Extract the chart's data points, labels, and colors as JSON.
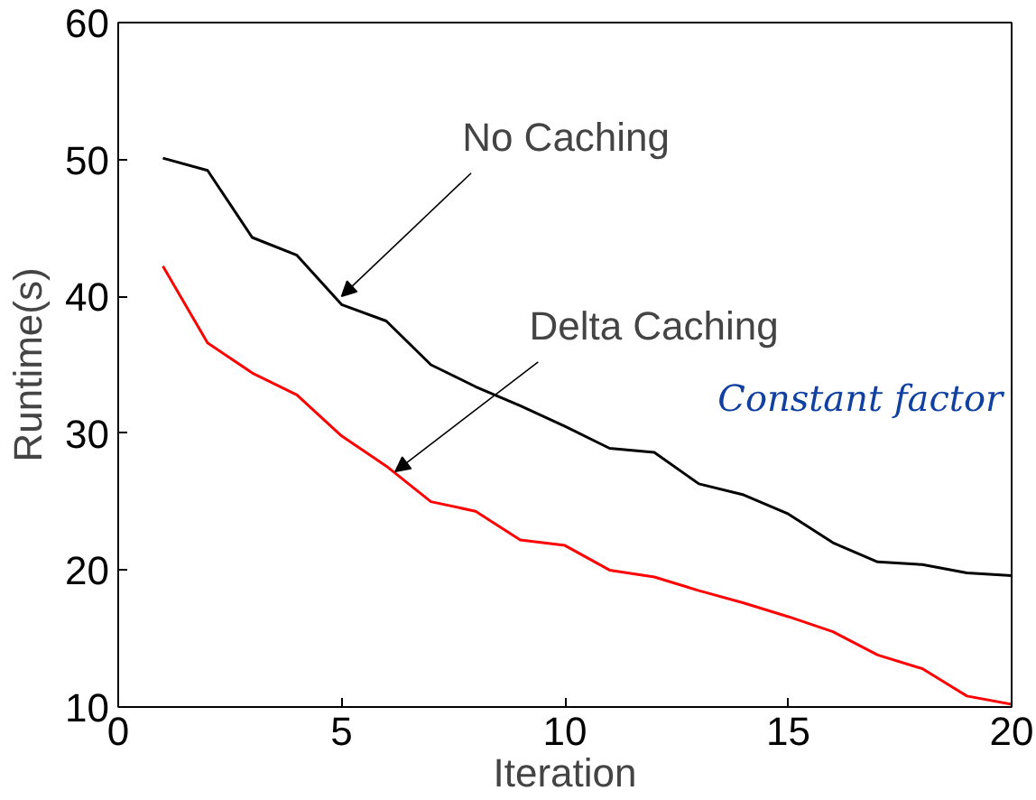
{
  "chart_data": {
    "type": "line",
    "xlabel": "Iteration",
    "ylabel": "Runtime(s)",
    "x": [
      1,
      2,
      3,
      4,
      5,
      6,
      7,
      8,
      9,
      10,
      11,
      12,
      13,
      14,
      15,
      16,
      17,
      18,
      19,
      20
    ],
    "series": [
      {
        "color": "#000000",
        "values": [
          50.1,
          49.2,
          44.3,
          43,
          39.4,
          38.2,
          35,
          33.4,
          32,
          30.5,
          28.9,
          28.6,
          26.3,
          25.5,
          24.1,
          22,
          20.6,
          20.4,
          19.8,
          19.6
        ]
      },
      {
        "color": "#ff0000",
        "values": [
          42.2,
          36.6,
          34.4,
          32.8,
          29.8,
          27.6,
          25,
          24.3,
          22.2,
          21.8,
          20,
          19.5,
          18.5,
          17.6,
          16.6,
          15.5,
          13.8,
          12.8,
          10.8,
          10.2
        ]
      }
    ],
    "xlim": [
      0,
      20
    ],
    "ylim": [
      10,
      60
    ],
    "xticks": [
      0,
      5,
      10,
      15,
      20
    ],
    "yticks": [
      10,
      20,
      30,
      40,
      50,
      60
    ],
    "grid": false,
    "marker": "none",
    "line_style": "solid",
    "annotations": [
      {
        "text": "No Caching",
        "x": 5,
        "y": 40
      },
      {
        "text": "Delta Caching",
        "x": 6.2,
        "y": 27.2
      },
      "Constant factor"
    ]
  }
}
